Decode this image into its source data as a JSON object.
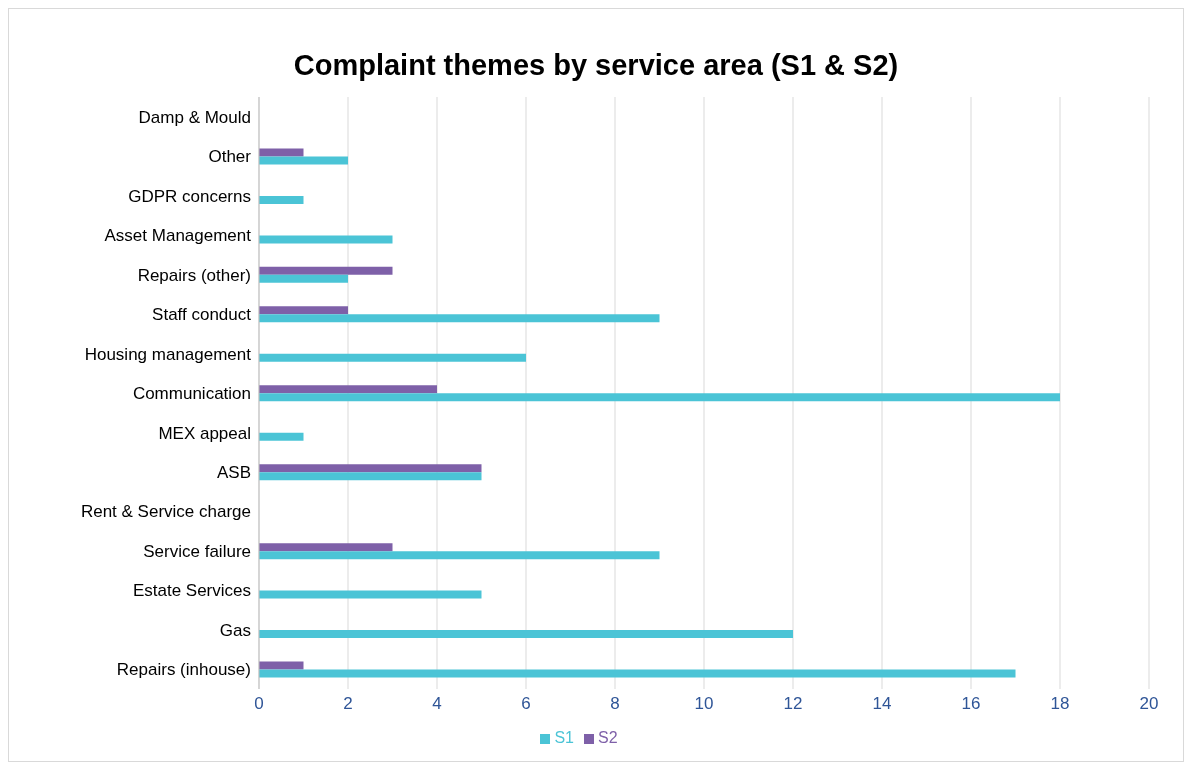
{
  "chart_data": {
    "type": "bar",
    "orientation": "horizontal",
    "title": "Complaint themes by service area (S1 & S2)",
    "categories": [
      "Damp & Mould",
      "Other",
      "GDPR concerns",
      "Asset Management",
      "Repairs (other)",
      "Staff conduct",
      "Housing management",
      "Communication",
      "MEX appeal",
      "ASB",
      "Rent & Service charge",
      "Service failure",
      "Estate Services",
      "Gas",
      "Repairs (inhouse)"
    ],
    "series": [
      {
        "name": "S2",
        "color": "#7e60a8",
        "values": [
          null,
          1,
          null,
          null,
          3,
          2,
          null,
          4,
          null,
          5,
          null,
          3,
          null,
          null,
          1
        ]
      },
      {
        "name": "S1",
        "color": "#4bc4d6",
        "values": [
          null,
          2,
          1,
          3,
          2,
          9,
          6,
          18,
          1,
          5,
          null,
          9,
          5,
          12,
          17
        ]
      }
    ],
    "xlim": [
      0,
      20
    ],
    "xticks": [
      0,
      2,
      4,
      6,
      8,
      10,
      12,
      14,
      16,
      18,
      20
    ],
    "grid": "x",
    "legend": "bottom"
  }
}
